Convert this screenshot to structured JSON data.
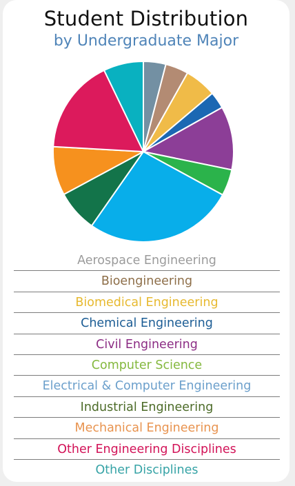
{
  "chart_data": {
    "type": "pie",
    "title": "Student Distribution",
    "subtitle": "by Undergraduate Major",
    "slices": [
      {
        "label": "Aerospace Engineering",
        "value": 4.1,
        "color": "#7390a3",
        "legend_color": "#9b9b9b"
      },
      {
        "label": "Bioengineering",
        "value": 4.2,
        "color": "#b38b73",
        "legend_color": "#8d6e48"
      },
      {
        "label": "Biomedical Engineering",
        "value": 5.8,
        "color": "#f0bb48",
        "legend_color": "#e7b92f"
      },
      {
        "label": "Chemical Engineering",
        "value": 3.1,
        "color": "#1b68b3",
        "legend_color": "#1b5c94"
      },
      {
        "label": "Civil Engineering",
        "value": 11.6,
        "color": "#8c3e97",
        "legend_color": "#8c2d84"
      },
      {
        "label": "Computer Science",
        "value": 4.8,
        "color": "#2bb34b",
        "legend_color": "#84b83e"
      },
      {
        "label": "Electrical & Computer Engineering",
        "value": 27.3,
        "color": "#08aeea",
        "legend_color": "#6b9fcb"
      },
      {
        "label": "Industrial Engineering",
        "value": 7.6,
        "color": "#13744a",
        "legend_color": "#4c6b28"
      },
      {
        "label": "Mechanical Engineering",
        "value": 8.9,
        "color": "#f6911e",
        "legend_color": "#e8934f"
      },
      {
        "label": "Other Engineering Disciplines",
        "value": 17.3,
        "color": "#dc1a5c",
        "legend_color": "#d21257"
      },
      {
        "label": "Other Disciplines",
        "value": 7.3,
        "color": "#09b1c0",
        "legend_color": "#36a3a6"
      }
    ]
  }
}
